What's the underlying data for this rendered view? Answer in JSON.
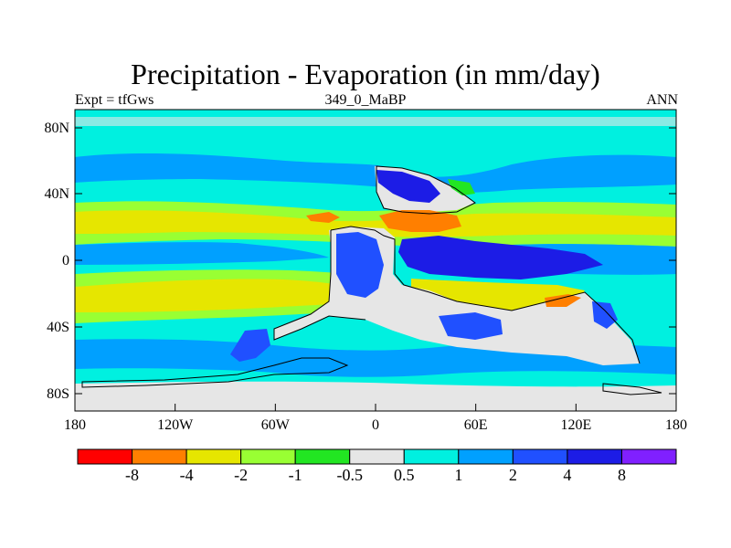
{
  "title": "Precipitation - Evaporation (in mm/day)",
  "experiment_label": "Expt = tfGws",
  "run_label": "349_0_MaBP",
  "season_label": "ANN",
  "lat_ticks": [
    "80N",
    "40N",
    "0",
    "40S",
    "80S"
  ],
  "lon_ticks": [
    "180",
    "120W",
    "60W",
    "0",
    "60E",
    "120E",
    "180"
  ],
  "colorbar": {
    "colors": [
      "#ff0000",
      "#ff7f00",
      "#e6e600",
      "#99ff33",
      "#22e622",
      "#e6e6e6",
      "#00f0e0",
      "#00a0ff",
      "#2050ff",
      "#1c1ce6",
      "#8020ff"
    ],
    "labels": [
      "-8",
      "-4",
      "-2",
      "-1",
      "-0.5",
      "0.5",
      "1",
      "2",
      "4",
      "8"
    ]
  },
  "palette": {
    "ocean_base": "#00f0e0",
    "land": "#e6e6e6",
    "dry_yellow": "#e6e600",
    "dry_lightgreen": "#99ff33",
    "dry_green": "#22e622",
    "very_dry": "#ff7f00",
    "wet": "#00a0ff",
    "wetter": "#2050ff",
    "wettest": "#1c1ce6"
  }
}
